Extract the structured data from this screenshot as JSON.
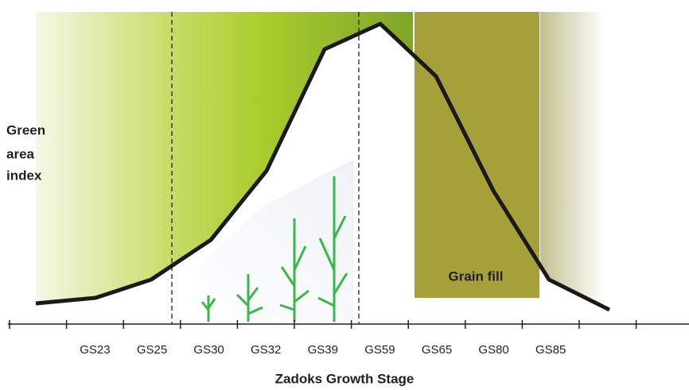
{
  "y_label": [
    "Green",
    "area",
    "index"
  ],
  "x_labels": [
    "GS23",
    "GS25",
    "GS30",
    "GS32",
    "GS39",
    "GS59",
    "GS65",
    "GS80",
    "GS85"
  ],
  "band_label": "Grain fill",
  "x_title": "Zadoks Growth Stage"
}
